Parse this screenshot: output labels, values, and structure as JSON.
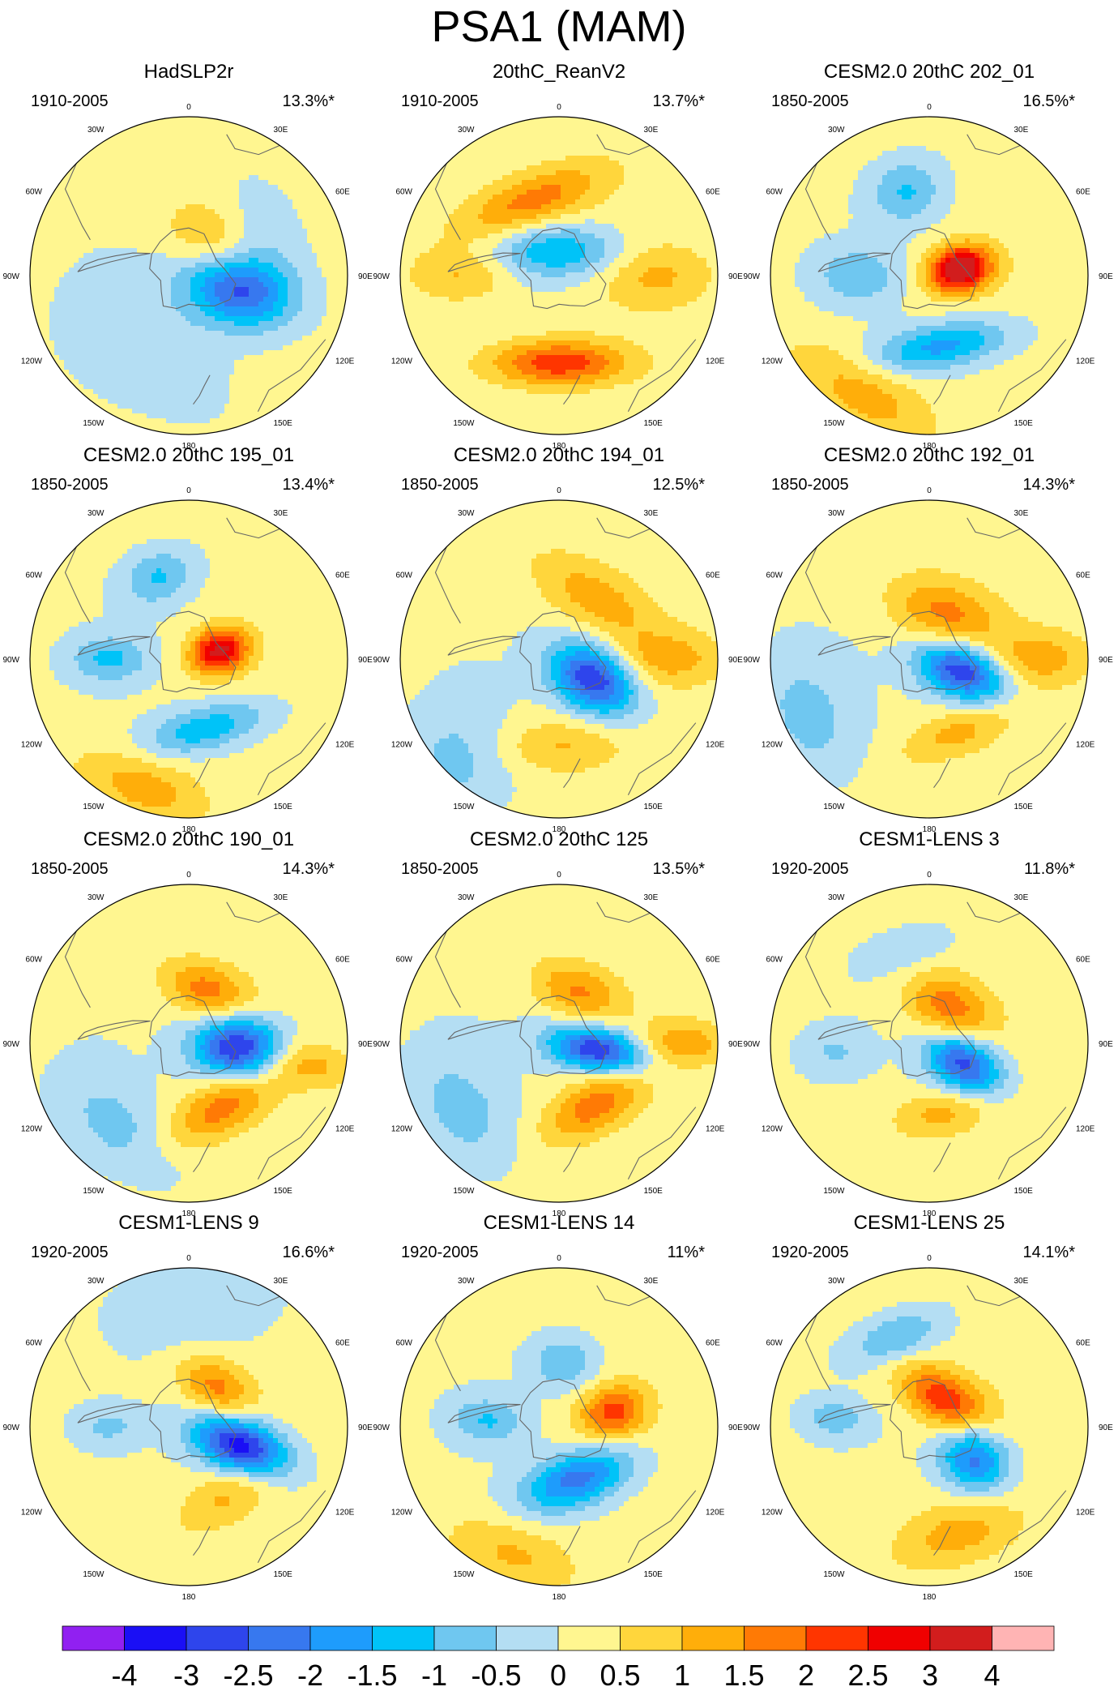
{
  "title": "PSA1 (MAM)",
  "chart_data": {
    "type": "polar-stereographic contour map panels (Southern Hemisphere SLP EOF pattern)",
    "lon_labels": [
      "0",
      "30E",
      "60E",
      "90E",
      "120E",
      "150E",
      "180",
      "150W",
      "120W",
      "90W",
      "60W",
      "30W"
    ],
    "panels": [
      {
        "title": "HadSLP2r",
        "period": "1910-2005",
        "variance": "13.3%*",
        "features": [
          {
            "lon": 105,
            "r": 0.32,
            "v": -3.0,
            "sx": 0.16,
            "sy": 0.24
          },
          {
            "lon": 40,
            "r": 0.25,
            "v": 1.2,
            "sx": 0.22,
            "sy": 0.16
          },
          {
            "lon": 60,
            "r": 0.5,
            "v": -0.6,
            "sx": 0.25,
            "sy": 0.2
          },
          {
            "lon": 210,
            "r": 0.55,
            "v": -0.6,
            "sx": 0.35,
            "sy": 0.25
          }
        ]
      },
      {
        "title": "20thC_ReanV2",
        "period": "1910-2005",
        "variance": "13.7%*",
        "features": [
          {
            "lon": 0,
            "r": 0.15,
            "v": -1.6,
            "sx": 0.28,
            "sy": 0.12
          },
          {
            "lon": 180,
            "r": 0.55,
            "v": 2.2,
            "sx": 0.3,
            "sy": 0.1
          },
          {
            "lon": 340,
            "r": 0.5,
            "v": 1.6,
            "sx": 0.35,
            "sy": 0.12
          },
          {
            "lon": 90,
            "r": 0.6,
            "v": 0.9,
            "sx": 0.14,
            "sy": 0.25
          },
          {
            "lon": 270,
            "r": 0.62,
            "v": 1.0,
            "sx": 0.12,
            "sy": 0.22
          }
        ]
      },
      {
        "title": "CESM2.0 20thC 202_01",
        "period": "1850-2005",
        "variance": "16.5%*",
        "features": [
          {
            "lon": 78,
            "r": 0.2,
            "v": 3.6,
            "sx": 0.1,
            "sy": 0.14
          },
          {
            "lon": 345,
            "r": 0.55,
            "v": -1.2,
            "sx": 0.16,
            "sy": 0.14
          },
          {
            "lon": 170,
            "r": 0.45,
            "v": -1.8,
            "sx": 0.3,
            "sy": 0.1
          },
          {
            "lon": 270,
            "r": 0.45,
            "v": -1.0,
            "sx": 0.12,
            "sy": 0.18
          },
          {
            "lon": 210,
            "r": 0.85,
            "v": 1.1,
            "sx": 0.35,
            "sy": 0.15
          }
        ]
      },
      {
        "title": "CESM2.0 20thC 195_01",
        "period": "1850-2005",
        "variance": "13.4%*",
        "features": [
          {
            "lon": 75,
            "r": 0.2,
            "v": 3.0,
            "sx": 0.1,
            "sy": 0.13
          },
          {
            "lon": 340,
            "r": 0.55,
            "v": -1.2,
            "sx": 0.16,
            "sy": 0.12
          },
          {
            "lon": 165,
            "r": 0.45,
            "v": -1.5,
            "sx": 0.28,
            "sy": 0.1
          },
          {
            "lon": 270,
            "r": 0.5,
            "v": -1.2,
            "sx": 0.1,
            "sy": 0.17
          },
          {
            "lon": 200,
            "r": 0.85,
            "v": 1.1,
            "sx": 0.3,
            "sy": 0.14
          }
        ]
      },
      {
        "title": "CESM2.0 20thC 194_01",
        "period": "1850-2005",
        "variance": "12.5%*",
        "features": [
          {
            "lon": 120,
            "r": 0.25,
            "v": -3.2,
            "sx": 0.14,
            "sy": 0.2
          },
          {
            "lon": 30,
            "r": 0.45,
            "v": 1.1,
            "sx": 0.3,
            "sy": 0.14
          },
          {
            "lon": 90,
            "r": 0.7,
            "v": 1.0,
            "sx": 0.12,
            "sy": 0.25
          },
          {
            "lon": 180,
            "r": 0.55,
            "v": 0.9,
            "sx": 0.28,
            "sy": 0.12
          },
          {
            "lon": 225,
            "r": 0.9,
            "v": -0.8,
            "sx": 0.25,
            "sy": 0.25
          }
        ]
      },
      {
        "title": "CESM2.0 20thC 192_01",
        "period": "1850-2005",
        "variance": "14.3%*",
        "features": [
          {
            "lon": 110,
            "r": 0.22,
            "v": -3.2,
            "sx": 0.12,
            "sy": 0.2
          },
          {
            "lon": 20,
            "r": 0.3,
            "v": 1.5,
            "sx": 0.25,
            "sy": 0.15
          },
          {
            "lon": 90,
            "r": 0.7,
            "v": 1.1,
            "sx": 0.12,
            "sy": 0.22
          },
          {
            "lon": 160,
            "r": 0.5,
            "v": 1.0,
            "sx": 0.25,
            "sy": 0.1
          },
          {
            "lon": 245,
            "r": 0.85,
            "v": -0.8,
            "sx": 0.3,
            "sy": 0.2
          }
        ]
      },
      {
        "title": "CESM2.0 20thC 190_01",
        "period": "1850-2005",
        "variance": "14.3%*",
        "features": [
          {
            "lon": 95,
            "r": 0.32,
            "v": -3.4,
            "sx": 0.14,
            "sy": 0.2
          },
          {
            "lon": 20,
            "r": 0.35,
            "v": 1.6,
            "sx": 0.2,
            "sy": 0.12
          },
          {
            "lon": 150,
            "r": 0.45,
            "v": 1.6,
            "sx": 0.28,
            "sy": 0.12
          },
          {
            "lon": 100,
            "r": 0.75,
            "v": 1.0,
            "sx": 0.1,
            "sy": 0.2
          },
          {
            "lon": 220,
            "r": 0.7,
            "v": -0.8,
            "sx": 0.3,
            "sy": 0.18
          }
        ]
      },
      {
        "title": "CESM2.0 20thC 125",
        "period": "1850-2005",
        "variance": "13.5%*",
        "features": [
          {
            "lon": 100,
            "r": 0.25,
            "v": -3.2,
            "sx": 0.1,
            "sy": 0.22
          },
          {
            "lon": 20,
            "r": 0.35,
            "v": 1.4,
            "sx": 0.2,
            "sy": 0.12
          },
          {
            "lon": 150,
            "r": 0.45,
            "v": 1.6,
            "sx": 0.25,
            "sy": 0.12
          },
          {
            "lon": 90,
            "r": 0.78,
            "v": 1.2,
            "sx": 0.1,
            "sy": 0.2
          },
          {
            "lon": 235,
            "r": 0.75,
            "v": -0.8,
            "sx": 0.3,
            "sy": 0.2
          }
        ]
      },
      {
        "title": "CESM1-LENS 3",
        "period": "1920-2005",
        "variance": "11.8%*",
        "features": [
          {
            "lon": 120,
            "r": 0.25,
            "v": -3.0,
            "sx": 0.12,
            "sy": 0.18
          },
          {
            "lon": 30,
            "r": 0.25,
            "v": 1.7,
            "sx": 0.2,
            "sy": 0.14
          },
          {
            "lon": 170,
            "r": 0.45,
            "v": 1.0,
            "sx": 0.22,
            "sy": 0.1
          },
          {
            "lon": 345,
            "r": 0.6,
            "v": -0.6,
            "sx": 0.2,
            "sy": 0.1
          },
          {
            "lon": 265,
            "r": 0.6,
            "v": -0.6,
            "sx": 0.1,
            "sy": 0.15
          }
        ]
      },
      {
        "title": "CESM1-LENS 9",
        "period": "1920-2005",
        "variance": "16.6%*",
        "features": [
          {
            "lon": 110,
            "r": 0.35,
            "v": -3.6,
            "sx": 0.12,
            "sy": 0.22
          },
          {
            "lon": 35,
            "r": 0.3,
            "v": 1.5,
            "sx": 0.18,
            "sy": 0.12
          },
          {
            "lon": 150,
            "r": 0.5,
            "v": 0.9,
            "sx": 0.25,
            "sy": 0.12
          },
          {
            "lon": 270,
            "r": 0.5,
            "v": -0.7,
            "sx": 0.08,
            "sy": 0.14
          },
          {
            "lon": 0,
            "r": 0.75,
            "v": -0.6,
            "sx": 0.35,
            "sy": 0.2
          }
        ]
      },
      {
        "title": "CESM1-LENS 14",
        "period": "1920-2005",
        "variance": "11%*",
        "features": [
          {
            "lon": 75,
            "r": 0.35,
            "v": 2.0,
            "sx": 0.12,
            "sy": 0.15
          },
          {
            "lon": 160,
            "r": 0.35,
            "v": -2.4,
            "sx": 0.25,
            "sy": 0.12
          },
          {
            "lon": 5,
            "r": 0.4,
            "v": -1.1,
            "sx": 0.15,
            "sy": 0.12
          },
          {
            "lon": 275,
            "r": 0.45,
            "v": -1.1,
            "sx": 0.1,
            "sy": 0.16
          },
          {
            "lon": 200,
            "r": 0.85,
            "v": 0.9,
            "sx": 0.3,
            "sy": 0.14
          }
        ]
      },
      {
        "title": "CESM1-LENS 25",
        "period": "1920-2005",
        "variance": "14.1%*",
        "features": [
          {
            "lon": 125,
            "r": 0.35,
            "v": -2.4,
            "sx": 0.14,
            "sy": 0.16
          },
          {
            "lon": 30,
            "r": 0.2,
            "v": 2.2,
            "sx": 0.22,
            "sy": 0.12
          },
          {
            "lon": 340,
            "r": 0.6,
            "v": -1.2,
            "sx": 0.2,
            "sy": 0.1
          },
          {
            "lon": 275,
            "r": 0.6,
            "v": -0.9,
            "sx": 0.08,
            "sy": 0.14
          },
          {
            "lon": 165,
            "r": 0.7,
            "v": 1.1,
            "sx": 0.28,
            "sy": 0.14
          }
        ]
      }
    ],
    "colorbar": {
      "levels": [
        "-4",
        "-3",
        "-2.5",
        "-2",
        "-1.5",
        "-1",
        "-0.5",
        "0",
        "0.5",
        "1",
        "1.5",
        "2",
        "2.5",
        "3",
        "4"
      ],
      "thresholds": [
        -4,
        -3,
        -2.5,
        -2,
        -1.5,
        -1,
        -0.5,
        0,
        0.5,
        1,
        1.5,
        2,
        2.5,
        3,
        4
      ],
      "colors": [
        "#9120f1",
        "#1a0ff5",
        "#2e45ec",
        "#3778ef",
        "#1e9cfc",
        "#00c3f8",
        "#6fc7f0",
        "#b4def3",
        "#fff690",
        "#ffd63c",
        "#ffae0a",
        "#ff7a05",
        "#ff3500",
        "#f00000",
        "#d21d1d",
        "#ffb4b4"
      ]
    }
  }
}
